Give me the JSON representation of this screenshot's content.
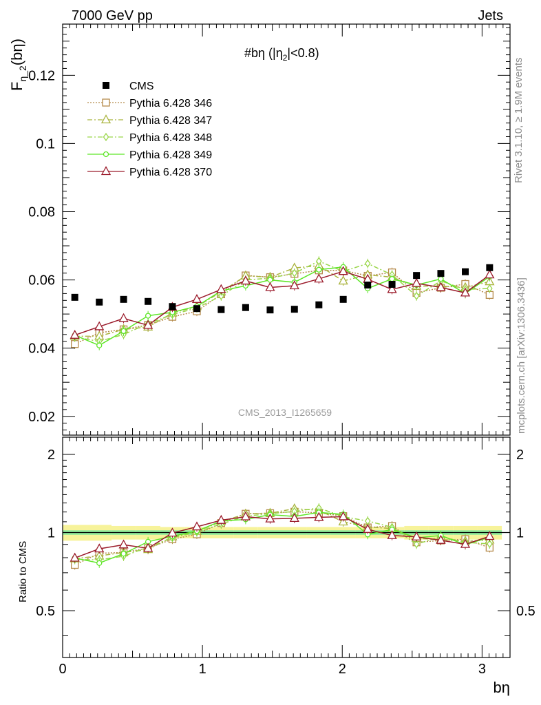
{
  "header": {
    "left": "7000 GeV pp",
    "right": "Jets"
  },
  "side_labels": {
    "rivet": "Rivet 3.1.10, ≥ 1.9M events",
    "mcplots": "mcplots.cern.ch [arXiv:1306.3436]"
  },
  "chart_data": {
    "type": "scatter",
    "title": "#bη (|η",
    "title_sub": "2",
    "title_tail": "|<0.8)",
    "ylabel_main": "F",
    "ylabel_sub": "η_2",
    "ylabel_tail": "(bη)",
    "ylabel_ratio": "Ratio to CMS",
    "xlabel": "bη",
    "watermark": "CMS_2013_I1265659",
    "xlim": [
      0,
      3.2
    ],
    "ylim": [
      0.0145,
      0.135
    ],
    "ratio_ylim": [
      0.33,
      2.33
    ],
    "x_ticks": [
      "0",
      "1",
      "2",
      "3"
    ],
    "y_ticks": [
      "0.02",
      "0.04",
      "0.06",
      "0.08",
      "0.1",
      "0.12"
    ],
    "ratio_ticks": [
      "0.5",
      "1",
      "2"
    ],
    "x": [
      0.087,
      0.262,
      0.436,
      0.611,
      0.785,
      0.96,
      1.134,
      1.309,
      1.484,
      1.658,
      1.833,
      2.007,
      2.182,
      2.356,
      2.531,
      2.705,
      2.88,
      3.054
    ],
    "cms": [
      0.0549,
      0.0535,
      0.0543,
      0.0537,
      0.0522,
      0.0516,
      0.0513,
      0.0519,
      0.0512,
      0.0514,
      0.0527,
      0.0543,
      0.0585,
      0.0587,
      0.0613,
      0.0619,
      0.0624,
      0.0636
    ],
    "band_inner": [
      0.02,
      0.02,
      0.02,
      0.02,
      0.02,
      0.02,
      0.02,
      0.02,
      0.02,
      0.02,
      0.02,
      0.02,
      0.02,
      0.02,
      0.02,
      0.02,
      0.02,
      0.02
    ],
    "band_outer": [
      0.07,
      0.07,
      0.06,
      0.06,
      0.05,
      0.05,
      0.05,
      0.05,
      0.05,
      0.05,
      0.05,
      0.05,
      0.05,
      0.05,
      0.06,
      0.06,
      0.06,
      0.06
    ],
    "series": [
      {
        "name": "Pythia 6.428 346",
        "color": "#b58a4a",
        "dash": "2,2",
        "marker": "square",
        "values": [
          0.0412,
          0.0445,
          0.0455,
          0.0468,
          0.0492,
          0.0508,
          0.0558,
          0.0613,
          0.0608,
          0.0618,
          0.0628,
          0.0628,
          0.0612,
          0.0622,
          0.0562,
          0.0577,
          0.0588,
          0.0556
        ]
      },
      {
        "name": "Pythia 6.428 347",
        "color": "#a9b33d",
        "dash": "7,3,2,3",
        "marker": "triangle",
        "values": [
          0.0435,
          0.0435,
          0.0455,
          0.0462,
          0.0503,
          0.0522,
          0.0565,
          0.0612,
          0.0608,
          0.0635,
          0.0642,
          0.0597,
          0.0615,
          0.0608,
          0.0582,
          0.0582,
          0.0578,
          0.0595
        ]
      },
      {
        "name": "Pythia 6.428 348",
        "color": "#9ad64a",
        "dash": "7,3,2,3",
        "marker": "diamond",
        "values": [
          0.0432,
          0.042,
          0.044,
          0.0472,
          0.0498,
          0.0518,
          0.0553,
          0.06,
          0.0605,
          0.062,
          0.0655,
          0.0625,
          0.0648,
          0.0615,
          0.0553,
          0.0597,
          0.0572,
          0.0575
        ]
      },
      {
        "name": "Pythia 6.428 349",
        "color": "#5ee627",
        "dash": "",
        "marker": "circle",
        "values": [
          0.0438,
          0.0408,
          0.045,
          0.0495,
          0.0505,
          0.0523,
          0.0568,
          0.0583,
          0.06,
          0.0593,
          0.063,
          0.0638,
          0.0575,
          0.0603,
          0.0585,
          0.0603,
          0.056,
          0.061
        ]
      },
      {
        "name": "Pythia 6.428 370",
        "color": "#9b1b2b",
        "dash": "",
        "marker": "triangle",
        "values": [
          0.0438,
          0.0463,
          0.0487,
          0.0467,
          0.052,
          0.0543,
          0.0572,
          0.0597,
          0.0578,
          0.0583,
          0.0603,
          0.0625,
          0.0602,
          0.0572,
          0.059,
          0.0578,
          0.0562,
          0.0615
        ]
      }
    ],
    "legend_entries": [
      {
        "name": "CMS",
        "color": "#000000",
        "marker": "square-filled",
        "dash": ""
      }
    ]
  }
}
